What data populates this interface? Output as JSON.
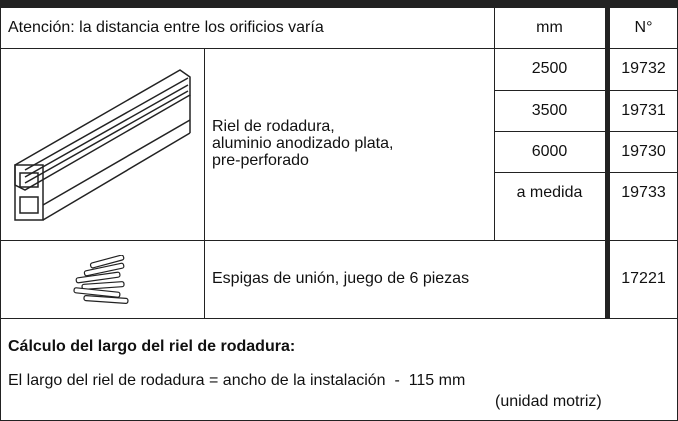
{
  "header": {
    "note": "Atención: la distancia entre los orificios varía",
    "mm": "mm",
    "number": "N°"
  },
  "rail": {
    "description": [
      "Riel de rodadura,",
      "aluminio anodizado plata,",
      "pre-perforado"
    ],
    "variants": [
      {
        "mm": "2500",
        "number": "19732"
      },
      {
        "mm": "3500",
        "number": "19731"
      },
      {
        "mm": "6000",
        "number": "19730"
      },
      {
        "mm": "a medida",
        "number": "19733"
      }
    ]
  },
  "pins": {
    "description": "Espigas de unión, juego de 6 piezas",
    "number": "17221"
  },
  "calculation": {
    "title": "Cálculo del largo del riel de rodadura:",
    "formula": "El largo del riel de rodadura = ancho de la instalación  -  115 mm",
    "note": "(unidad motriz)"
  }
}
